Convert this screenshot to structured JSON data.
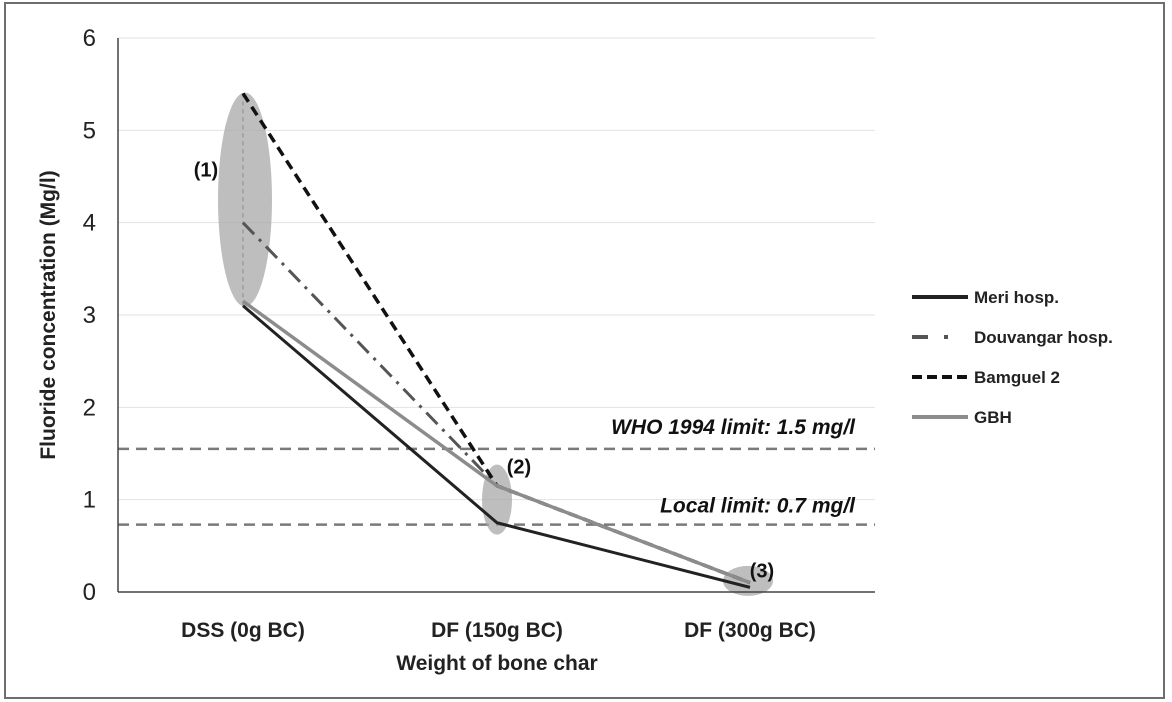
{
  "chart_data": {
    "type": "line",
    "categories": [
      "DSS (0g BC)",
      "DF (150g BC)",
      "DF (300g BC)"
    ],
    "series": [
      {
        "name": "Meri hosp.",
        "values": [
          3.1,
          0.75,
          0.05
        ],
        "color": "#222222",
        "style": "solid"
      },
      {
        "name": "Douvangar hosp.",
        "values": [
          4.0,
          1.15,
          0.1
        ],
        "color": "#555555",
        "style": "dashdot"
      },
      {
        "name": "Bamguel 2",
        "values": [
          5.4,
          1.15,
          0.1
        ],
        "color": "#111111",
        "style": "dashed"
      },
      {
        "name": "GBH",
        "values": [
          3.15,
          1.15,
          0.1
        ],
        "color": "#8c8c8c",
        "style": "solid"
      }
    ],
    "ylim": [
      0,
      6
    ],
    "yticks": [
      "0",
      "1",
      "2",
      "3",
      "4",
      "5",
      "6"
    ],
    "xlabel": "Weight of bone char",
    "ylabel": "Fluoride concentration (Mg/l)",
    "grid": true,
    "legend": "right",
    "reference_lines": [
      {
        "label": "WHO 1994 limit: 1.5 mg/l",
        "value": 1.55
      },
      {
        "label": "Local limit: 0.7 mg/l",
        "value": 0.73
      }
    ],
    "annotations": [
      {
        "label": "(1)",
        "category": 0
      },
      {
        "label": "(2)",
        "category": 1
      },
      {
        "label": "(3)",
        "category": 2
      }
    ]
  }
}
